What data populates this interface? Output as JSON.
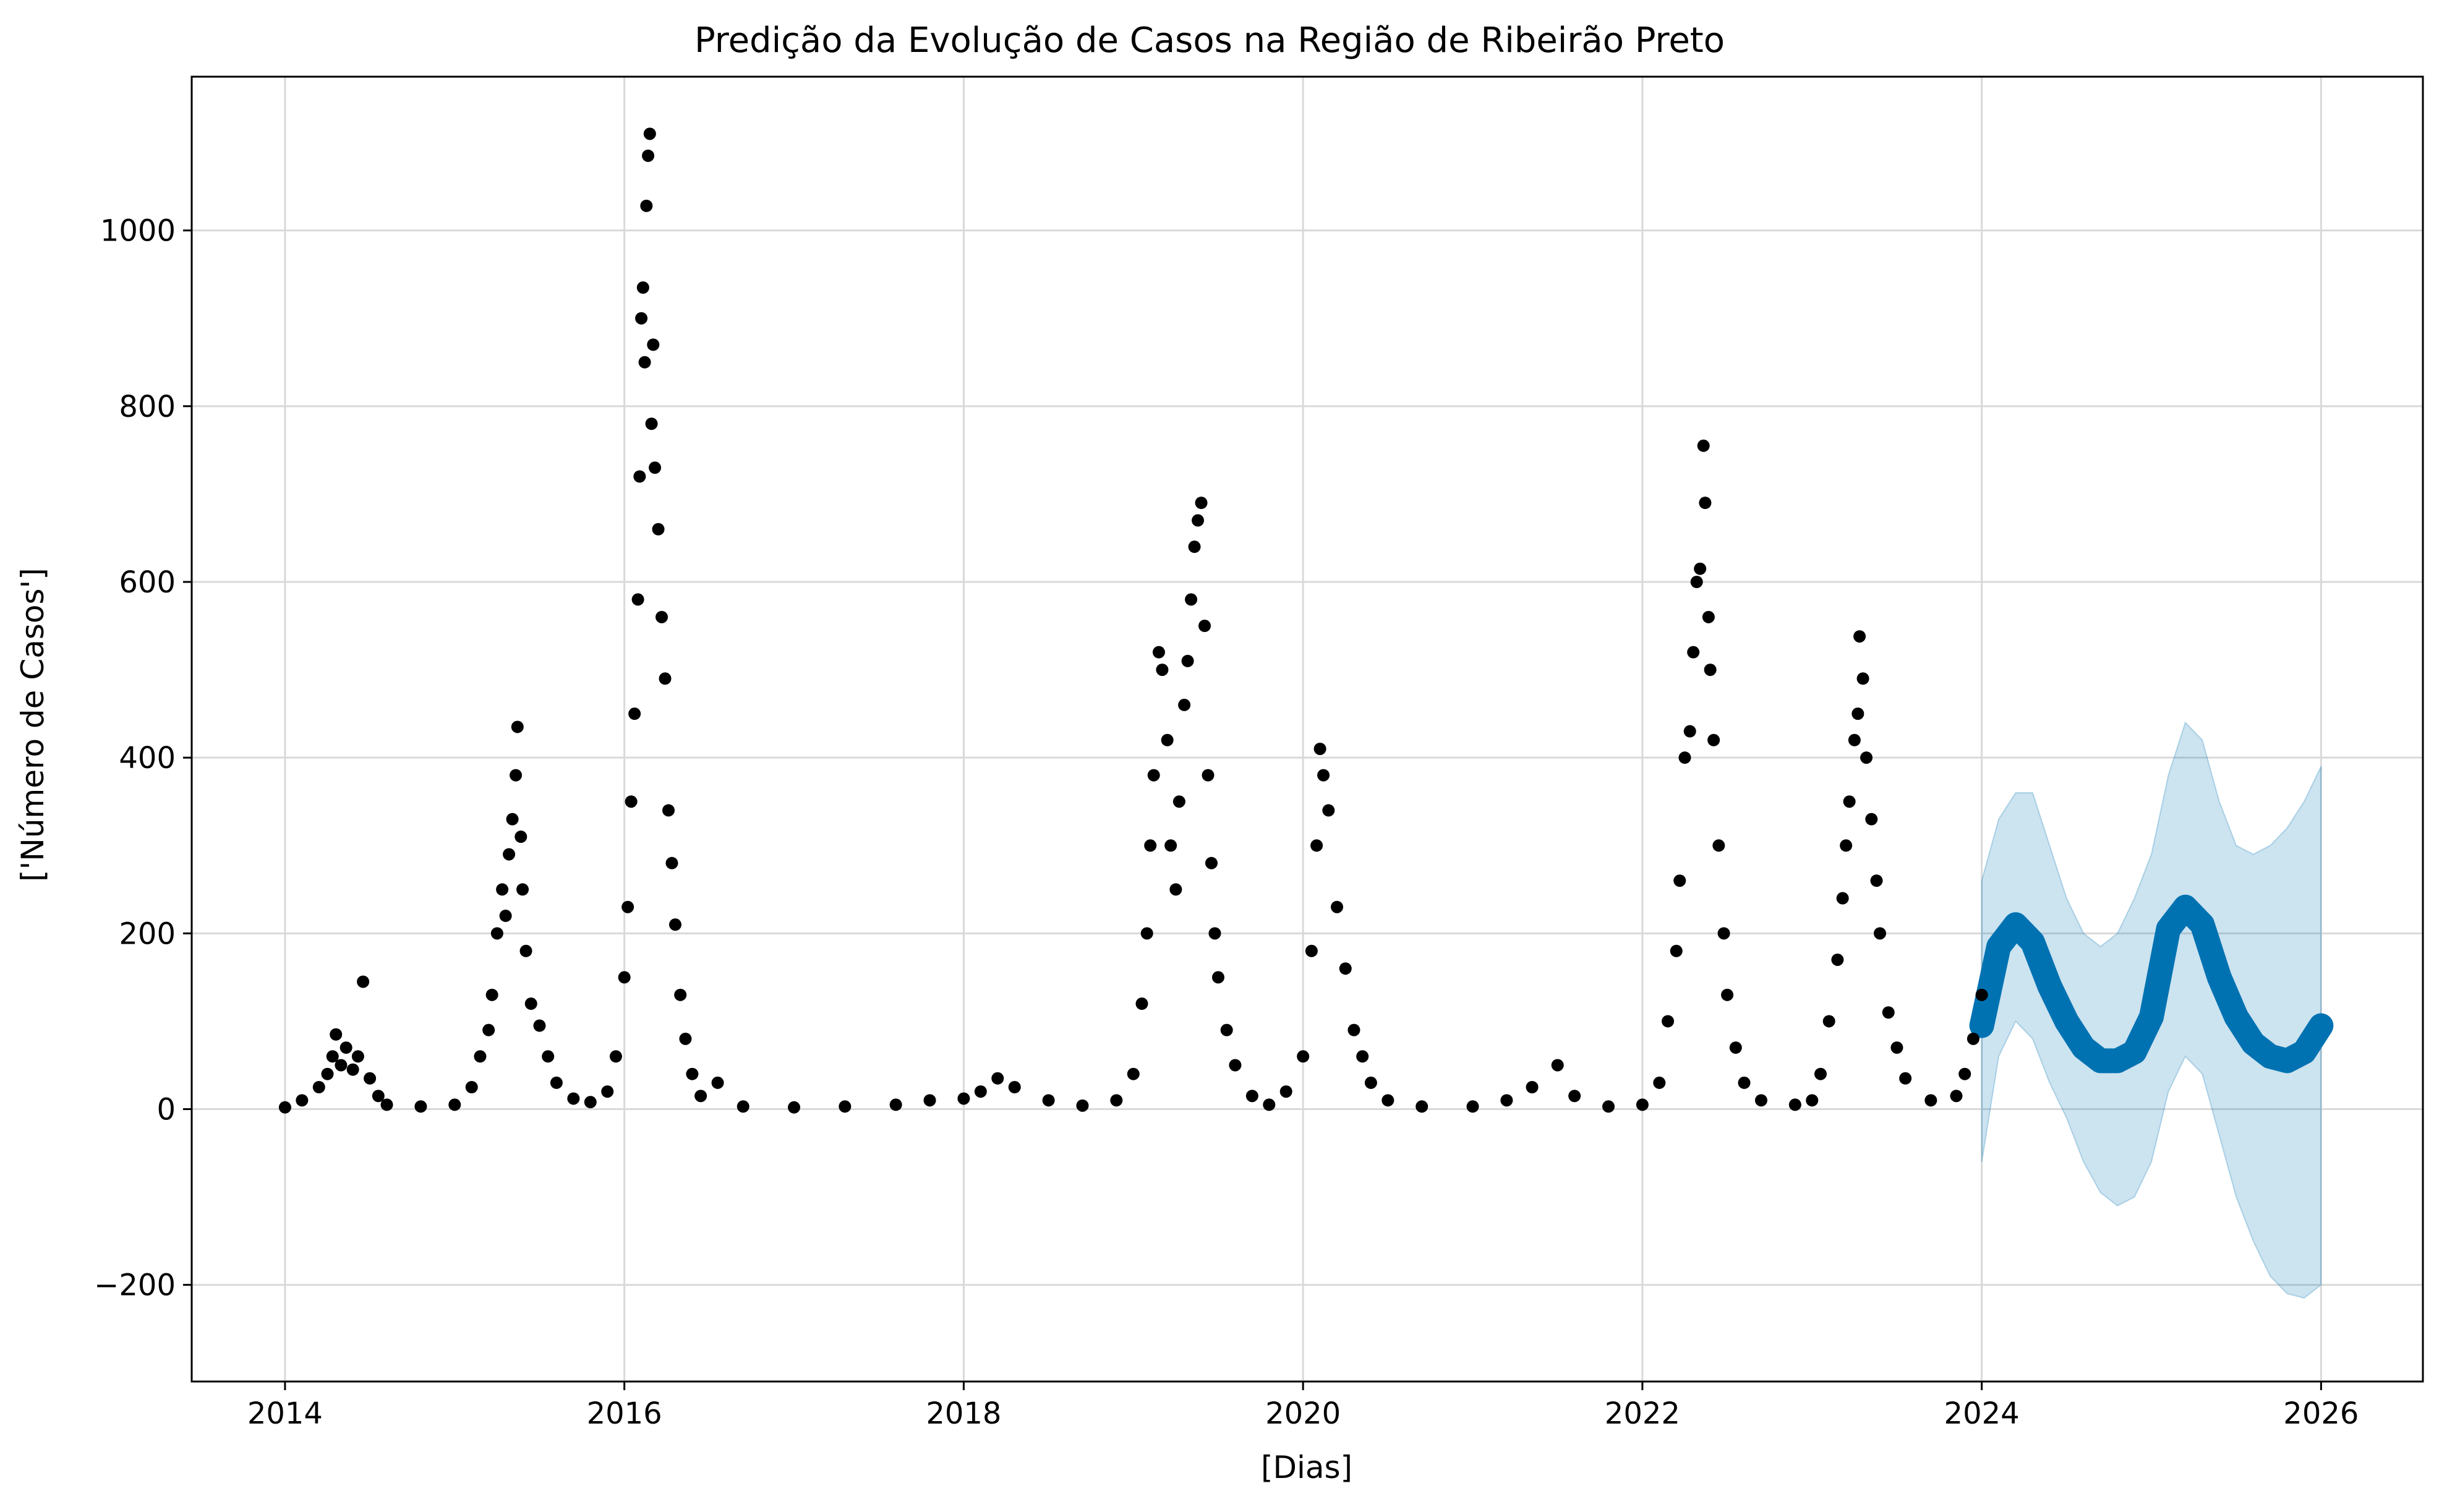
{
  "chart_data": {
    "type": "scatter",
    "title": "Predição da Evolução de Casos na Região de Ribeirão Preto",
    "xlabel": "[Dias]",
    "ylabel": "['Número de Casos']",
    "xlim": [
      2013.45,
      2026.6
    ],
    "ylim": [
      -310,
      1175
    ],
    "x_ticks": [
      2014,
      2016,
      2018,
      2020,
      2022,
      2024,
      2026
    ],
    "x_tick_labels": [
      "2014",
      "2016",
      "2018",
      "2020",
      "2022",
      "2024",
      "2026"
    ],
    "y_ticks": [
      -200,
      0,
      200,
      400,
      600,
      800,
      1000
    ],
    "y_tick_labels": [
      "−200",
      "0",
      "200",
      "400",
      "600",
      "800",
      "1000"
    ],
    "grid": true,
    "legend": null,
    "colors": {
      "observed": "#000000",
      "forecast": "#0072B2",
      "interval": "#0072B2",
      "grid": "#d9d9d9"
    },
    "series": [
      {
        "kind": "observed",
        "points": [
          [
            2014.0,
            2
          ],
          [
            2014.1,
            10
          ],
          [
            2014.2,
            25
          ],
          [
            2014.25,
            40
          ],
          [
            2014.28,
            60
          ],
          [
            2014.3,
            85
          ],
          [
            2014.33,
            50
          ],
          [
            2014.36,
            70
          ],
          [
            2014.4,
            45
          ],
          [
            2014.43,
            60
          ],
          [
            2014.46,
            145
          ],
          [
            2014.5,
            35
          ],
          [
            2014.55,
            15
          ],
          [
            2014.6,
            5
          ],
          [
            2014.8,
            3
          ],
          [
            2015.0,
            5
          ],
          [
            2015.1,
            25
          ],
          [
            2015.15,
            60
          ],
          [
            2015.2,
            90
          ],
          [
            2015.22,
            130
          ],
          [
            2015.25,
            200
          ],
          [
            2015.28,
            250
          ],
          [
            2015.3,
            220
          ],
          [
            2015.32,
            290
          ],
          [
            2015.34,
            330
          ],
          [
            2015.36,
            380
          ],
          [
            2015.37,
            435
          ],
          [
            2015.39,
            310
          ],
          [
            2015.4,
            250
          ],
          [
            2015.42,
            180
          ],
          [
            2015.45,
            120
          ],
          [
            2015.5,
            95
          ],
          [
            2015.55,
            60
          ],
          [
            2015.6,
            30
          ],
          [
            2015.7,
            12
          ],
          [
            2015.8,
            8
          ],
          [
            2015.9,
            20
          ],
          [
            2015.95,
            60
          ],
          [
            2016.0,
            150
          ],
          [
            2016.02,
            230
          ],
          [
            2016.04,
            350
          ],
          [
            2016.06,
            450
          ],
          [
            2016.08,
            580
          ],
          [
            2016.09,
            720
          ],
          [
            2016.1,
            900
          ],
          [
            2016.11,
            935
          ],
          [
            2016.12,
            850
          ],
          [
            2016.13,
            1028
          ],
          [
            2016.14,
            1085
          ],
          [
            2016.15,
            1110
          ],
          [
            2016.16,
            780
          ],
          [
            2016.17,
            870
          ],
          [
            2016.18,
            730
          ],
          [
            2016.2,
            660
          ],
          [
            2016.22,
            560
          ],
          [
            2016.24,
            490
          ],
          [
            2016.26,
            340
          ],
          [
            2016.28,
            280
          ],
          [
            2016.3,
            210
          ],
          [
            2016.33,
            130
          ],
          [
            2016.36,
            80
          ],
          [
            2016.4,
            40
          ],
          [
            2016.45,
            15
          ],
          [
            2016.55,
            30
          ],
          [
            2016.7,
            3
          ],
          [
            2017.0,
            2
          ],
          [
            2017.3,
            3
          ],
          [
            2017.6,
            5
          ],
          [
            2017.8,
            10
          ],
          [
            2018.0,
            12
          ],
          [
            2018.1,
            20
          ],
          [
            2018.2,
            35
          ],
          [
            2018.3,
            25
          ],
          [
            2018.5,
            10
          ],
          [
            2018.7,
            4
          ],
          [
            2018.9,
            10
          ],
          [
            2019.0,
            40
          ],
          [
            2019.05,
            120
          ],
          [
            2019.08,
            200
          ],
          [
            2019.1,
            300
          ],
          [
            2019.12,
            380
          ],
          [
            2019.15,
            520
          ],
          [
            2019.17,
            500
          ],
          [
            2019.2,
            420
          ],
          [
            2019.22,
            300
          ],
          [
            2019.25,
            250
          ],
          [
            2019.27,
            350
          ],
          [
            2019.3,
            460
          ],
          [
            2019.32,
            510
          ],
          [
            2019.34,
            580
          ],
          [
            2019.36,
            640
          ],
          [
            2019.38,
            670
          ],
          [
            2019.4,
            690
          ],
          [
            2019.42,
            550
          ],
          [
            2019.44,
            380
          ],
          [
            2019.46,
            280
          ],
          [
            2019.48,
            200
          ],
          [
            2019.5,
            150
          ],
          [
            2019.55,
            90
          ],
          [
            2019.6,
            50
          ],
          [
            2019.7,
            15
          ],
          [
            2019.8,
            5
          ],
          [
            2019.9,
            20
          ],
          [
            2020.0,
            60
          ],
          [
            2020.05,
            180
          ],
          [
            2020.08,
            300
          ],
          [
            2020.1,
            410
          ],
          [
            2020.12,
            380
          ],
          [
            2020.15,
            340
          ],
          [
            2020.2,
            230
          ],
          [
            2020.25,
            160
          ],
          [
            2020.3,
            90
          ],
          [
            2020.35,
            60
          ],
          [
            2020.4,
            30
          ],
          [
            2020.5,
            10
          ],
          [
            2020.7,
            3
          ],
          [
            2021.0,
            3
          ],
          [
            2021.2,
            10
          ],
          [
            2021.35,
            25
          ],
          [
            2021.5,
            50
          ],
          [
            2021.6,
            15
          ],
          [
            2021.8,
            3
          ],
          [
            2022.0,
            5
          ],
          [
            2022.1,
            30
          ],
          [
            2022.15,
            100
          ],
          [
            2022.2,
            180
          ],
          [
            2022.22,
            260
          ],
          [
            2022.25,
            400
          ],
          [
            2022.28,
            430
          ],
          [
            2022.3,
            520
          ],
          [
            2022.32,
            600
          ],
          [
            2022.34,
            615
          ],
          [
            2022.36,
            755
          ],
          [
            2022.37,
            690
          ],
          [
            2022.39,
            560
          ],
          [
            2022.4,
            500
          ],
          [
            2022.42,
            420
          ],
          [
            2022.45,
            300
          ],
          [
            2022.48,
            200
          ],
          [
            2022.5,
            130
          ],
          [
            2022.55,
            70
          ],
          [
            2022.6,
            30
          ],
          [
            2022.7,
            10
          ],
          [
            2022.9,
            5
          ],
          [
            2023.0,
            10
          ],
          [
            2023.05,
            40
          ],
          [
            2023.1,
            100
          ],
          [
            2023.15,
            170
          ],
          [
            2023.18,
            240
          ],
          [
            2023.2,
            300
          ],
          [
            2023.22,
            350
          ],
          [
            2023.25,
            420
          ],
          [
            2023.27,
            450
          ],
          [
            2023.28,
            538
          ],
          [
            2023.3,
            490
          ],
          [
            2023.32,
            400
          ],
          [
            2023.35,
            330
          ],
          [
            2023.38,
            260
          ],
          [
            2023.4,
            200
          ],
          [
            2023.45,
            110
          ],
          [
            2023.5,
            70
          ],
          [
            2023.55,
            35
          ],
          [
            2023.7,
            10
          ],
          [
            2023.85,
            15
          ],
          [
            2023.9,
            40
          ],
          [
            2023.95,
            80
          ],
          [
            2024.0,
            130
          ]
        ]
      },
      {
        "kind": "forecast",
        "x": [
          2024.0,
          2024.1,
          2024.2,
          2024.3,
          2024.4,
          2024.5,
          2024.6,
          2024.7,
          2024.8,
          2024.9,
          2025.0,
          2025.1,
          2025.2,
          2025.3,
          2025.4,
          2025.5,
          2025.6,
          2025.7,
          2025.8,
          2025.9,
          2026.0
        ],
        "yhat": [
          95,
          185,
          210,
          190,
          140,
          100,
          70,
          55,
          55,
          65,
          105,
          205,
          230,
          210,
          150,
          105,
          75,
          60,
          55,
          65,
          95
        ],
        "lower": [
          -60,
          60,
          100,
          80,
          30,
          -10,
          -60,
          -95,
          -110,
          -100,
          -60,
          20,
          60,
          40,
          -30,
          -100,
          -150,
          -190,
          -210,
          -215,
          -200
        ],
        "upper": [
          260,
          330,
          360,
          360,
          300,
          240,
          200,
          185,
          200,
          240,
          290,
          380,
          440,
          420,
          350,
          300,
          290,
          300,
          320,
          350,
          390
        ]
      }
    ]
  }
}
